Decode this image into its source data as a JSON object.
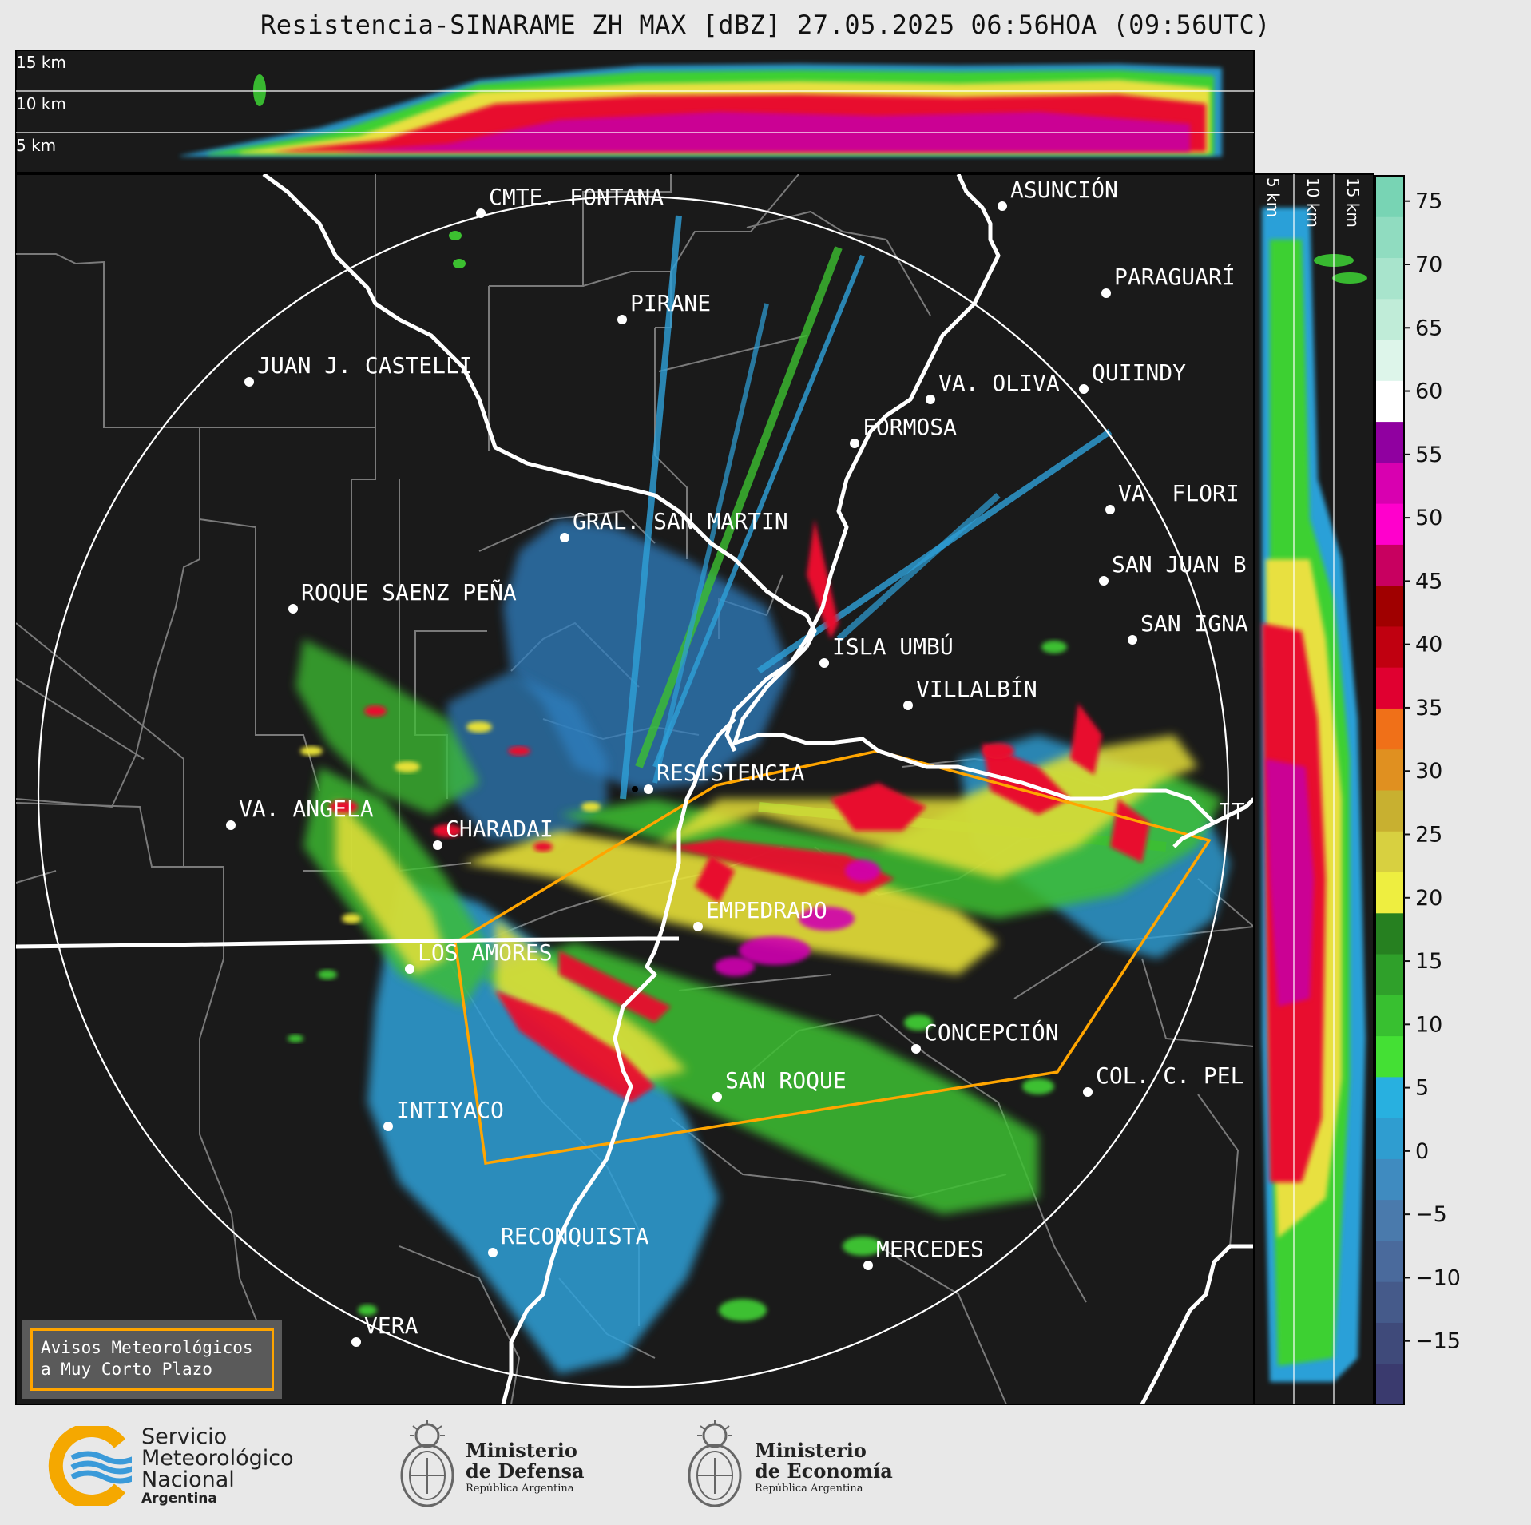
{
  "title": "Resistencia-SINARAME ZH MAX [dBZ] 27.05.2025 06:56HOA (09:56UTC)",
  "top_panel": {
    "height_labels": [
      "15 km",
      "10 km",
      "5 km"
    ]
  },
  "side_panel": {
    "height_labels": [
      "5 km",
      "10 km",
      "15 km"
    ]
  },
  "colorbar": {
    "ticks": [
      "75",
      "70",
      "65",
      "60",
      "55",
      "50",
      "45",
      "40",
      "35",
      "30",
      "25",
      "20",
      "15",
      "10",
      "5",
      "0",
      "−5",
      "−10",
      "−15"
    ],
    "colors": [
      "#3a3a6e",
      "#3f4a7a",
      "#455a8a",
      "#4a6a9c",
      "#4a7aac",
      "#3f8bc0",
      "#2f9dd0",
      "#28b0e0",
      "#44e034",
      "#38c030",
      "#2fa02a",
      "#268020",
      "#eeee40",
      "#d8d040",
      "#c8b030",
      "#e09020",
      "#f07018",
      "#e00030",
      "#c00010",
      "#a00000",
      "#c80060",
      "#ff00cc",
      "#d800b0",
      "#9000a0",
      "#ffffff",
      "#ddf5ea",
      "#c0ecd8",
      "#a8e4cc",
      "#90dcc0",
      "#78d4b4"
    ],
    "values": [
      -20,
      -15,
      -10,
      -5,
      0,
      5,
      10,
      15,
      20,
      25,
      30,
      35,
      40,
      45,
      50,
      55,
      60,
      65,
      70,
      75
    ]
  },
  "cities": [
    {
      "name": "CMTE. FONTANA"
    },
    {
      "name": "ASUNCIÓN"
    },
    {
      "name": "PARAGUARÍ"
    },
    {
      "name": "PIRANE"
    },
    {
      "name": "JUAN J. CASTELLI"
    },
    {
      "name": "QUIINDY"
    },
    {
      "name": "VA. OLIVA"
    },
    {
      "name": "FORMOSA"
    },
    {
      "name": "VA. FLORI"
    },
    {
      "name": "GRAL. SAN MARTIN"
    },
    {
      "name": "SAN JUAN B"
    },
    {
      "name": "ROQUE SAENZ PEÑA"
    },
    {
      "name": "SAN IGNA"
    },
    {
      "name": "ISLA UMBÚ"
    },
    {
      "name": "VILLALBÍN"
    },
    {
      "name": "RESISTENCIA"
    },
    {
      "name": "VA. ANGELA"
    },
    {
      "name": "CHARADAI"
    },
    {
      "name": "IT"
    },
    {
      "name": "EMPEDRADO"
    },
    {
      "name": "LOS AMORES"
    },
    {
      "name": "CONCEPCIÓN"
    },
    {
      "name": "SAN ROQUE"
    },
    {
      "name": "COL. C. PEL"
    },
    {
      "name": "INTIYACO"
    },
    {
      "name": "RECONQUISTA"
    },
    {
      "name": "MERCEDES"
    },
    {
      "name": "VERA"
    }
  ],
  "legend_box": {
    "line1": "Avisos Meteorológicos",
    "line2": "a Muy Corto Plazo"
  },
  "logos": {
    "smn": {
      "line1": "Servicio",
      "line2": "Meteorológico",
      "line3": "Nacional",
      "line4": "Argentina"
    },
    "defensa": {
      "line1": "Ministerio",
      "line2": "de Defensa",
      "line3": "República Argentina"
    },
    "economia": {
      "line1": "Ministerio",
      "line2": "de Economía",
      "line3": "República Argentina"
    }
  }
}
